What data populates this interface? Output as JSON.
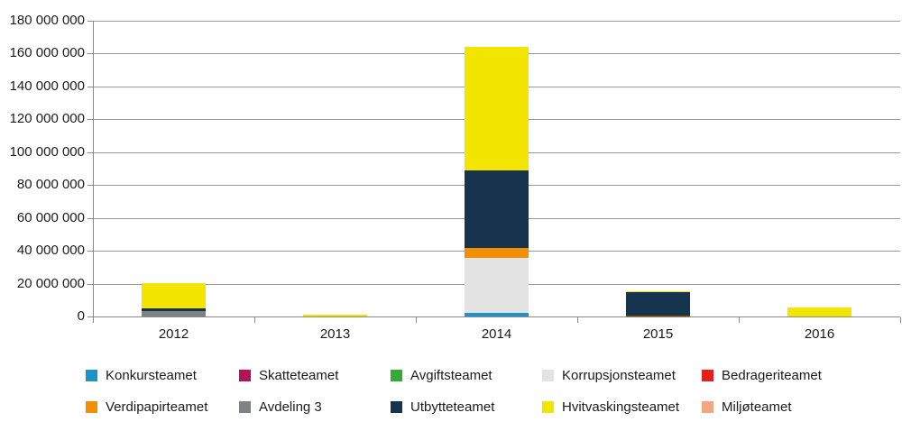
{
  "chart_data": {
    "type": "bar",
    "stacked": true,
    "title": "",
    "xlabel": "",
    "ylabel": "",
    "categories": [
      "2012",
      "2013",
      "2014",
      "2015",
      "2016"
    ],
    "series": [
      {
        "name": "Konkursteamet",
        "color": "#1F93C8",
        "values": [
          0,
          0,
          2000000,
          0,
          0
        ]
      },
      {
        "name": "Skatteteamet",
        "color": "#B01356",
        "values": [
          0,
          0,
          0,
          0,
          0
        ]
      },
      {
        "name": "Avgiftsteamet",
        "color": "#39A935",
        "values": [
          0,
          0,
          0,
          250000,
          0
        ]
      },
      {
        "name": "Korrupsjonsteamet",
        "color": "#E3E3E3",
        "values": [
          0,
          0,
          33500000,
          0,
          0
        ]
      },
      {
        "name": "Bedrageriteamet",
        "color": "#E3211C",
        "values": [
          0,
          0,
          0,
          250000,
          0
        ]
      },
      {
        "name": "Verdipapirteamet",
        "color": "#F18F00",
        "values": [
          0,
          0,
          6000000,
          0,
          0
        ]
      },
      {
        "name": "Avdeling 3",
        "color": "#7D8287",
        "values": [
          3500000,
          0,
          0,
          0,
          0
        ]
      },
      {
        "name": "Utbytteteamet",
        "color": "#16344E",
        "values": [
          1500000,
          0,
          47500000,
          14100000,
          0
        ]
      },
      {
        "name": "Hvitvaskingsteamet",
        "color": "#F2E600",
        "values": [
          15500000,
          1200000,
          75000000,
          700000,
          5400000
        ]
      },
      {
        "name": "Miljøteamet",
        "color": "#F4A683",
        "values": [
          0,
          0,
          0,
          0,
          0
        ]
      }
    ],
    "totals_by_category": [
      20500000,
      1200000,
      164000000,
      15300000,
      5400000
    ],
    "ylim": [
      0,
      180000000
    ],
    "ytick_step": 20000000,
    "ytick_labels": [
      "180 000 000",
      "160 000 000",
      "140 000 000",
      "120 000 000",
      "100 000 000",
      "80 000 000",
      "60 000 000",
      "40 000 000",
      "20 000 000",
      "0"
    ],
    "grid": true,
    "legend_position": "bottom",
    "legend_rows": [
      [
        "Konkursteamet",
        "Skatteteamet",
        "Avgiftsteamet",
        "Korrupsjonsteamet",
        "Bedrageriteamet"
      ],
      [
        "Verdipapirteamet",
        "Avdeling 3",
        "Utbytteteamet",
        "Hvitvaskingsteamet",
        "Miljøteamet"
      ]
    ],
    "colors": {
      "grid": "#9B9B9B",
      "axis": "#8A8A8A",
      "text": "#1A1A1A",
      "background": "#FFFFFF"
    }
  }
}
